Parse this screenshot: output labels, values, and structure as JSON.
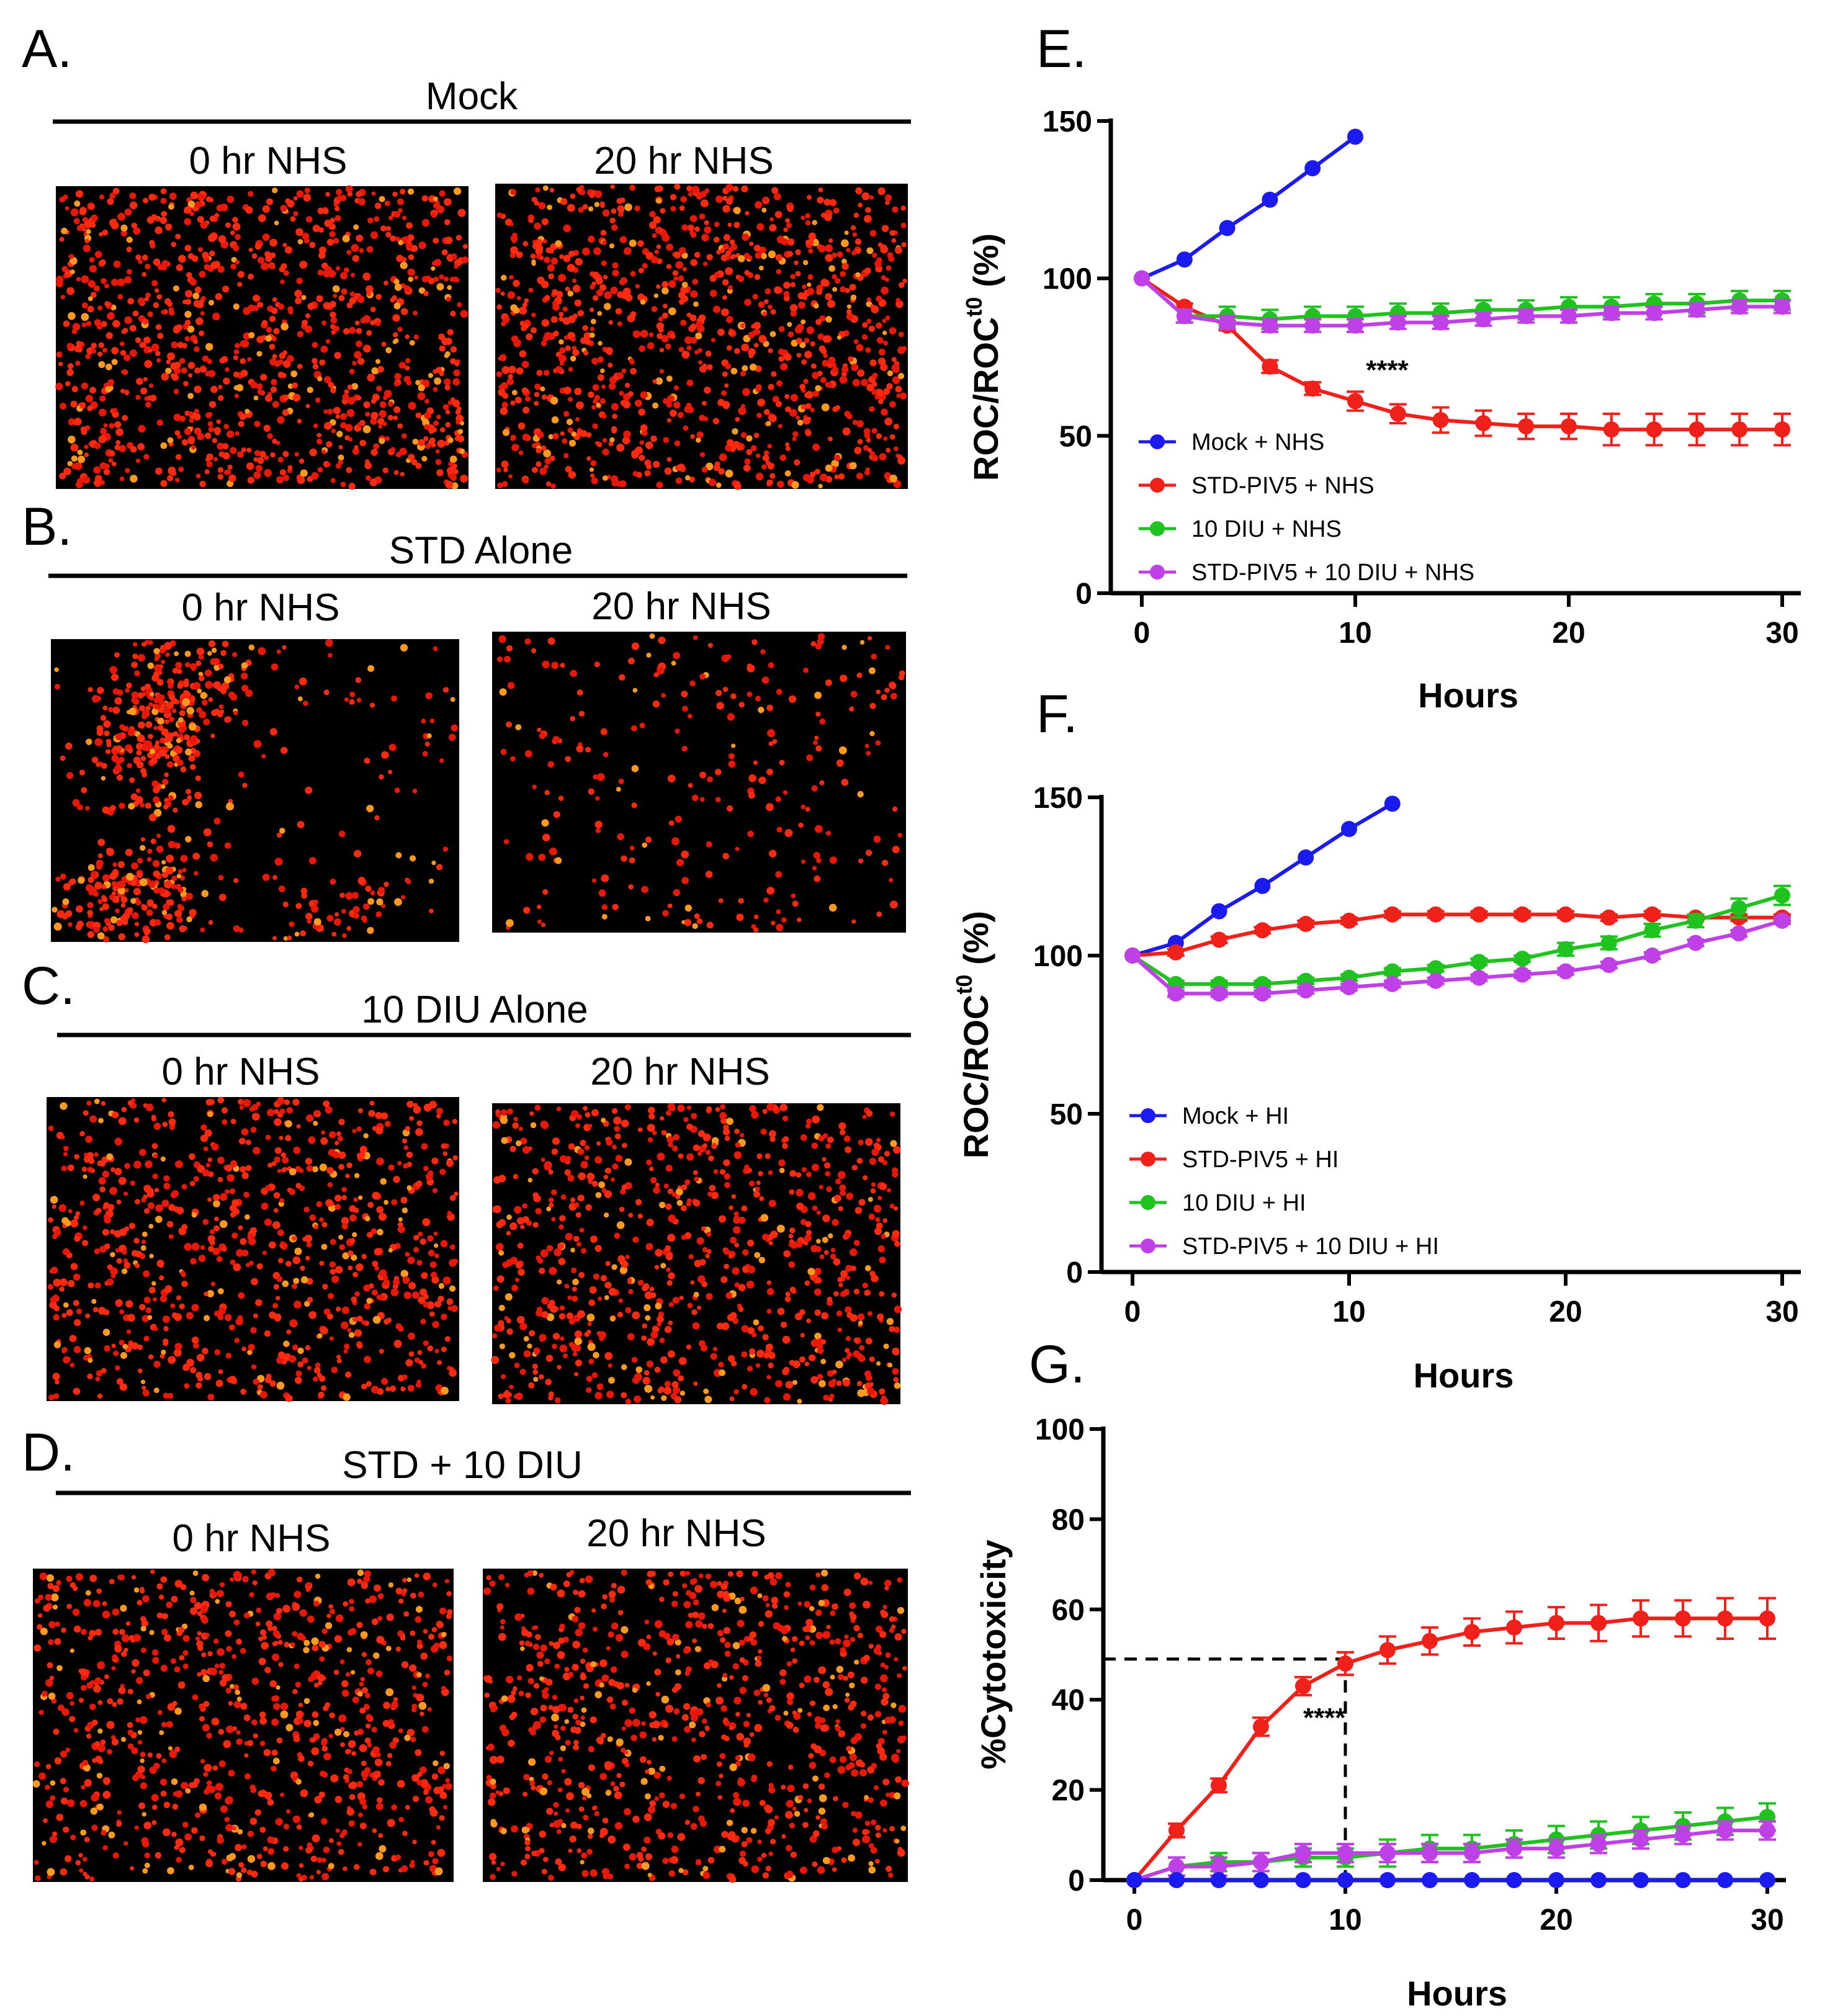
{
  "image_panels": [
    {
      "letter": "A.",
      "title": "Mock",
      "left_label": "0 hr NHS",
      "right_label": "20 hr NHS",
      "density": [
        "high",
        "high"
      ]
    },
    {
      "letter": "B.",
      "title": "STD Alone",
      "left_label": "0 hr NHS",
      "right_label": "20 hr NHS",
      "density": [
        "clustered",
        "sparse"
      ]
    },
    {
      "letter": "C.",
      "title": "10 DIU Alone",
      "left_label": "0 hr NHS",
      "right_label": "20 hr NHS",
      "density": [
        "medium",
        "medium"
      ]
    },
    {
      "letter": "D.",
      "title": "STD + 10 DIU",
      "left_label": "0 hr NHS",
      "right_label": "20 hr NHS",
      "density": [
        "medium",
        "medium"
      ]
    }
  ],
  "colors": {
    "mock": "#1b1bf0",
    "std": "#f0201b",
    "diu": "#1fc21f",
    "combo": "#c040e8",
    "cells": "#ff2a10"
  },
  "chart_data": [
    {
      "letter": "E.",
      "type": "line",
      "title": "",
      "xlabel": "Hours",
      "ylabel_main": "ROC/ROC",
      "ylabel_sup": "t0",
      "ylabel_unit": " (%)",
      "xlim": [
        0,
        30
      ],
      "ylim": [
        0,
        150
      ],
      "xticks": [
        0,
        10,
        20,
        30
      ],
      "yticks": [
        0,
        50,
        100,
        150
      ],
      "legend_position": "bottom-left",
      "annotation": {
        "text": "****",
        "x": 10.5,
        "y": 68
      },
      "series": [
        {
          "name": "Mock + NHS",
          "color_key": "mock",
          "x": [
            0,
            2,
            4,
            6,
            8,
            10
          ],
          "y": [
            100,
            106,
            116,
            125,
            135,
            145
          ],
          "err": [
            0,
            0,
            0,
            0,
            0,
            0
          ]
        },
        {
          "name": "STD-PIV5 + NHS",
          "color_key": "std",
          "x": [
            0,
            2,
            4,
            6,
            8,
            10,
            12,
            14,
            16,
            18,
            20,
            22,
            24,
            26,
            28,
            30
          ],
          "y": [
            100,
            91,
            85,
            72,
            65,
            61,
            57,
            55,
            54,
            53,
            53,
            52,
            52,
            52,
            52,
            52
          ],
          "err": [
            0,
            1,
            1.5,
            2,
            2,
            3,
            3,
            4,
            4,
            4,
            4,
            5,
            5,
            5,
            5,
            5
          ]
        },
        {
          "name": "10 DIU + NHS",
          "color_key": "diu",
          "x": [
            0,
            2,
            4,
            6,
            8,
            10,
            12,
            14,
            16,
            18,
            20,
            22,
            24,
            26,
            28,
            30
          ],
          "y": [
            100,
            88,
            88,
            87,
            88,
            88,
            89,
            89,
            90,
            90,
            91,
            91,
            92,
            92,
            93,
            93
          ],
          "err": [
            0,
            2,
            3,
            3,
            3,
            3,
            3,
            3,
            3,
            3,
            3,
            3,
            3,
            3,
            3,
            3
          ]
        },
        {
          "name": "STD-PIV5 + 10 DIU + NHS",
          "color_key": "combo",
          "x": [
            0,
            2,
            4,
            6,
            8,
            10,
            12,
            14,
            16,
            18,
            20,
            22,
            24,
            26,
            28,
            30
          ],
          "y": [
            100,
            88,
            86,
            85,
            85,
            85,
            86,
            86,
            87,
            88,
            88,
            89,
            89,
            90,
            91,
            91
          ],
          "err": [
            0,
            2,
            2,
            2,
            2,
            2,
            2,
            2,
            2,
            2,
            2,
            2,
            2,
            2,
            2,
            2
          ]
        }
      ]
    },
    {
      "letter": "F.",
      "type": "line",
      "title": "",
      "xlabel": "Hours",
      "ylabel_main": "ROC/ROC",
      "ylabel_sup": "t0",
      "ylabel_unit": " (%)",
      "xlim": [
        0,
        30
      ],
      "ylim": [
        0,
        150
      ],
      "xticks": [
        0,
        10,
        20,
        30
      ],
      "yticks": [
        0,
        50,
        100,
        150
      ],
      "legend_position": "bottom-left",
      "series": [
        {
          "name": "Mock + HI",
          "color_key": "mock",
          "x": [
            0,
            2,
            4,
            6,
            8,
            10,
            12
          ],
          "y": [
            100,
            104,
            114,
            122,
            131,
            140,
            148
          ],
          "err": [
            0,
            0,
            0,
            0,
            0,
            0,
            0
          ]
        },
        {
          "name": "STD-PIV5 + HI",
          "color_key": "std",
          "x": [
            0,
            2,
            4,
            6,
            8,
            10,
            12,
            14,
            16,
            18,
            20,
            22,
            24,
            26,
            28,
            30
          ],
          "y": [
            100,
            101,
            105,
            108,
            110,
            111,
            113,
            113,
            113,
            113,
            113,
            112,
            113,
            112,
            112,
            112
          ],
          "err": [
            0,
            1,
            1,
            1,
            1,
            1,
            1,
            1,
            1,
            1,
            1,
            1,
            1,
            1,
            1,
            1
          ]
        },
        {
          "name": "10 DIU + HI",
          "color_key": "diu",
          "x": [
            0,
            2,
            4,
            6,
            8,
            10,
            12,
            14,
            16,
            18,
            20,
            22,
            24,
            26,
            28,
            30
          ],
          "y": [
            100,
            91,
            91,
            91,
            92,
            93,
            95,
            96,
            98,
            99,
            102,
            104,
            108,
            111,
            115,
            119
          ],
          "err": [
            0,
            1,
            1,
            1,
            1,
            1,
            1,
            1,
            1,
            1,
            2,
            2,
            2,
            2,
            3,
            3
          ]
        },
        {
          "name": "STD-PIV5 + 10 DIU + HI",
          "color_key": "combo",
          "x": [
            0,
            2,
            4,
            6,
            8,
            10,
            12,
            14,
            16,
            18,
            20,
            22,
            24,
            26,
            28,
            30
          ],
          "y": [
            100,
            88,
            88,
            88,
            89,
            90,
            91,
            92,
            93,
            94,
            95,
            97,
            100,
            104,
            107,
            111
          ],
          "err": [
            0,
            1,
            1,
            1,
            1,
            1,
            1,
            1,
            1,
            1,
            1,
            1,
            1,
            1,
            1,
            1
          ]
        }
      ]
    },
    {
      "letter": "G.",
      "type": "line",
      "title": "",
      "xlabel": "Hours",
      "ylabel_main": "%Cytotoxicity",
      "xlim": [
        0,
        30
      ],
      "ylim": [
        0,
        100
      ],
      "xticks": [
        0,
        10,
        20,
        30
      ],
      "yticks": [
        0,
        20,
        40,
        60,
        80,
        100
      ],
      "reference": {
        "x": 10,
        "y": 49
      },
      "annotation": {
        "text": "****",
        "x": 8,
        "y": 34
      },
      "series": [
        {
          "name": "",
          "color_key": "mock",
          "x": [
            0,
            2,
            4,
            6,
            8,
            10,
            12,
            14,
            16,
            18,
            20,
            22,
            24,
            26,
            28,
            30
          ],
          "y": [
            0,
            0,
            0,
            0,
            0,
            0,
            0,
            0,
            0,
            0,
            0,
            0,
            0,
            0,
            0,
            0
          ],
          "err": [
            0,
            0,
            0,
            0,
            0,
            0,
            0,
            0,
            0,
            0,
            0,
            0,
            0,
            0,
            0,
            0
          ]
        },
        {
          "name": "",
          "color_key": "std",
          "x": [
            0,
            2,
            4,
            6,
            8,
            10,
            12,
            14,
            16,
            18,
            20,
            22,
            24,
            26,
            28,
            30
          ],
          "y": [
            0,
            11,
            21,
            34,
            43,
            48,
            51,
            53,
            55,
            56,
            57,
            57,
            58,
            58,
            58,
            58
          ],
          "err": [
            0,
            1.5,
            1.5,
            2,
            2,
            2.5,
            3,
            3,
            3,
            3.5,
            3.5,
            4,
            4,
            4,
            4.5,
            4.5
          ]
        },
        {
          "name": "",
          "color_key": "diu",
          "x": [
            0,
            2,
            4,
            6,
            8,
            10,
            12,
            14,
            16,
            18,
            20,
            22,
            24,
            26,
            28,
            30
          ],
          "y": [
            0,
            3,
            4,
            4,
            5,
            5,
            6,
            7,
            7,
            8,
            9,
            10,
            11,
            12,
            13,
            14
          ],
          "err": [
            0,
            2,
            2,
            2,
            2,
            2,
            3,
            3,
            3,
            3,
            3,
            3,
            3,
            3,
            3,
            3
          ]
        },
        {
          "name": "",
          "color_key": "combo",
          "x": [
            0,
            2,
            4,
            6,
            8,
            10,
            12,
            14,
            16,
            18,
            20,
            22,
            24,
            26,
            28,
            30
          ],
          "y": [
            0,
            3,
            3,
            4,
            6,
            6,
            6,
            6,
            6,
            7,
            7,
            8,
            9,
            10,
            11,
            11
          ],
          "err": [
            0,
            2,
            2,
            2,
            2,
            2,
            2,
            2,
            2,
            2,
            2,
            2,
            2,
            2,
            2,
            2
          ]
        }
      ]
    }
  ]
}
